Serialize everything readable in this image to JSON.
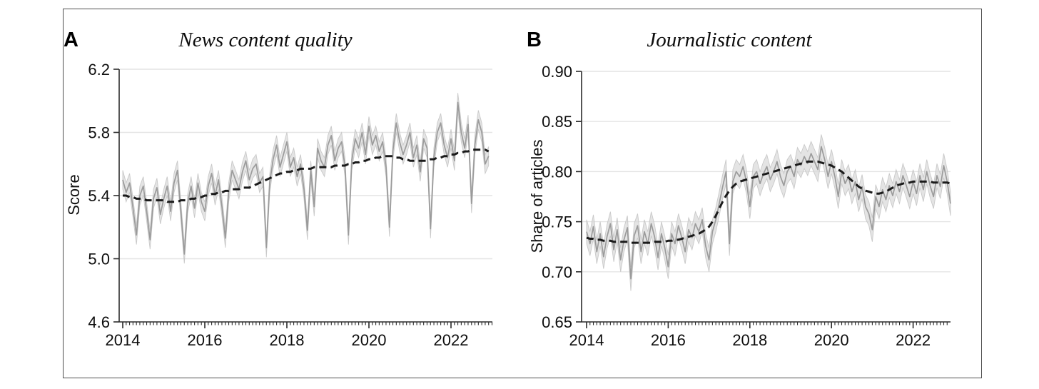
{
  "colors": {
    "trend": "#1b1b1b",
    "monthly": "#9b9b9b",
    "band": "#d9d9d9",
    "band_edge": "#bfbfbf",
    "grid": "#e4e4e4",
    "axis": "#2b2b2b",
    "figure_border": "#4f4f4f"
  },
  "chart_data": [
    {
      "type": "line",
      "panel_label": "A",
      "title": "News content quality",
      "xlabel": "",
      "ylabel": "Score",
      "xlim": [
        2014,
        2023
      ],
      "ylim": [
        4.6,
        6.2
      ],
      "yticks": [
        4.6,
        5.0,
        5.4,
        5.8,
        6.2
      ],
      "ytick_labels": [
        "4.6",
        "5.0",
        "5.4",
        "5.8",
        "6.2"
      ],
      "xticks": [
        2014,
        2016,
        2018,
        2020,
        2022
      ],
      "xtick_labels": [
        "2014",
        "2016",
        "2018",
        "2020",
        "2022"
      ],
      "x_start": 2014,
      "x_step_months": 1,
      "grid": "horizontal",
      "legend": "none",
      "band": {
        "series": "monthly",
        "halfwidth": 0.06
      },
      "series": [
        {
          "name": "monthly",
          "style": "solid",
          "values": [
            5.5,
            5.42,
            5.48,
            5.32,
            5.15,
            5.4,
            5.46,
            5.3,
            5.12,
            5.38,
            5.45,
            5.28,
            5.38,
            5.46,
            5.3,
            5.48,
            5.56,
            5.3,
            5.03,
            5.35,
            5.46,
            5.32,
            5.48,
            5.36,
            5.3,
            5.46,
            5.54,
            5.4,
            5.5,
            5.33,
            5.13,
            5.42,
            5.56,
            5.5,
            5.44,
            5.55,
            5.62,
            5.5,
            5.57,
            5.6,
            5.48,
            5.52,
            5.07,
            5.48,
            5.63,
            5.72,
            5.58,
            5.66,
            5.74,
            5.58,
            5.64,
            5.52,
            5.6,
            5.44,
            5.18,
            5.56,
            5.33,
            5.7,
            5.62,
            5.58,
            5.72,
            5.78,
            5.62,
            5.7,
            5.74,
            5.58,
            5.15,
            5.62,
            5.76,
            5.7,
            5.8,
            5.66,
            5.84,
            5.72,
            5.78,
            5.68,
            5.74,
            5.58,
            5.2,
            5.68,
            5.86,
            5.74,
            5.66,
            5.72,
            5.8,
            5.64,
            5.72,
            5.55,
            5.76,
            5.7,
            5.19,
            5.64,
            5.8,
            5.86,
            5.72,
            5.64,
            5.76,
            5.62,
            5.99,
            5.8,
            5.7,
            5.85,
            5.35,
            5.72,
            5.88,
            5.8,
            5.6,
            5.65
          ]
        },
        {
          "name": "trend",
          "style": "dashed",
          "values": [
            5.4,
            5.4,
            5.39,
            5.39,
            5.38,
            5.38,
            5.38,
            5.37,
            5.37,
            5.37,
            5.37,
            5.37,
            5.37,
            5.36,
            5.36,
            5.36,
            5.36,
            5.37,
            5.37,
            5.37,
            5.38,
            5.38,
            5.39,
            5.39,
            5.4,
            5.4,
            5.41,
            5.41,
            5.42,
            5.42,
            5.43,
            5.43,
            5.44,
            5.44,
            5.44,
            5.45,
            5.45,
            5.45,
            5.46,
            5.47,
            5.48,
            5.49,
            5.5,
            5.51,
            5.52,
            5.53,
            5.54,
            5.54,
            5.55,
            5.55,
            5.56,
            5.56,
            5.57,
            5.57,
            5.57,
            5.57,
            5.58,
            5.58,
            5.58,
            5.58,
            5.58,
            5.58,
            5.59,
            5.59,
            5.59,
            5.59,
            5.6,
            5.6,
            5.61,
            5.61,
            5.62,
            5.62,
            5.63,
            5.63,
            5.64,
            5.64,
            5.65,
            5.65,
            5.65,
            5.65,
            5.64,
            5.64,
            5.63,
            5.63,
            5.62,
            5.62,
            5.62,
            5.62,
            5.62,
            5.62,
            5.63,
            5.63,
            5.64,
            5.64,
            5.65,
            5.65,
            5.66,
            5.66,
            5.67,
            5.67,
            5.68,
            5.68,
            5.69,
            5.69,
            5.69,
            5.69,
            5.69,
            5.68
          ]
        }
      ]
    },
    {
      "type": "line",
      "panel_label": "B",
      "title": "Journalistic content",
      "xlabel": "",
      "ylabel": "Share of articles",
      "xlim": [
        2014,
        2023
      ],
      "ylim": [
        0.65,
        0.9
      ],
      "yticks": [
        0.65,
        0.7,
        0.75,
        0.8,
        0.85,
        0.9
      ],
      "ytick_labels": [
        "0.65",
        "0.70",
        "0.75",
        "0.80",
        "0.85",
        "0.90"
      ],
      "xticks": [
        2014,
        2016,
        2018,
        2020,
        2022
      ],
      "xtick_labels": [
        "2014",
        "2016",
        "2018",
        "2020",
        "2022"
      ],
      "x_start": 2014,
      "x_step_months": 1,
      "grid": "horizontal",
      "legend": "none",
      "band": {
        "series": "monthly",
        "halfwidth": 0.012
      },
      "series": [
        {
          "name": "monthly",
          "style": "solid",
          "values": [
            0.74,
            0.728,
            0.745,
            0.72,
            0.738,
            0.715,
            0.735,
            0.748,
            0.722,
            0.742,
            0.712,
            0.732,
            0.744,
            0.693,
            0.736,
            0.746,
            0.72,
            0.74,
            0.728,
            0.748,
            0.735,
            0.714,
            0.738,
            0.724,
            0.705,
            0.738,
            0.728,
            0.746,
            0.734,
            0.72,
            0.742,
            0.734,
            0.748,
            0.74,
            0.752,
            0.726,
            0.712,
            0.74,
            0.752,
            0.768,
            0.785,
            0.8,
            0.728,
            0.79,
            0.8,
            0.795,
            0.805,
            0.79,
            0.765,
            0.795,
            0.8,
            0.788,
            0.798,
            0.805,
            0.792,
            0.8,
            0.81,
            0.795,
            0.786,
            0.8,
            0.805,
            0.795,
            0.812,
            0.806,
            0.815,
            0.808,
            0.818,
            0.81,
            0.802,
            0.825,
            0.812,
            0.795,
            0.81,
            0.795,
            0.775,
            0.8,
            0.788,
            0.795,
            0.78,
            0.79,
            0.772,
            0.785,
            0.765,
            0.758,
            0.742,
            0.775,
            0.765,
            0.782,
            0.772,
            0.786,
            0.776,
            0.79,
            0.78,
            0.796,
            0.786,
            0.775,
            0.79,
            0.778,
            0.796,
            0.782,
            0.8,
            0.786,
            0.775,
            0.796,
            0.785,
            0.806,
            0.79,
            0.768
          ]
        },
        {
          "name": "trend",
          "style": "dashed",
          "values": [
            0.734,
            0.733,
            0.733,
            0.732,
            0.732,
            0.731,
            0.731,
            0.731,
            0.73,
            0.73,
            0.73,
            0.73,
            0.73,
            0.729,
            0.729,
            0.729,
            0.729,
            0.729,
            0.729,
            0.729,
            0.73,
            0.73,
            0.73,
            0.73,
            0.731,
            0.731,
            0.732,
            0.732,
            0.733,
            0.734,
            0.735,
            0.736,
            0.737,
            0.738,
            0.74,
            0.742,
            0.745,
            0.75,
            0.756,
            0.763,
            0.77,
            0.776,
            0.781,
            0.785,
            0.788,
            0.79,
            0.791,
            0.792,
            0.793,
            0.794,
            0.795,
            0.796,
            0.797,
            0.798,
            0.799,
            0.8,
            0.801,
            0.802,
            0.803,
            0.804,
            0.805,
            0.806,
            0.807,
            0.808,
            0.809,
            0.81,
            0.81,
            0.81,
            0.81,
            0.809,
            0.808,
            0.807,
            0.806,
            0.804,
            0.802,
            0.8,
            0.797,
            0.794,
            0.791,
            0.788,
            0.785,
            0.783,
            0.781,
            0.78,
            0.779,
            0.778,
            0.778,
            0.779,
            0.78,
            0.782,
            0.784,
            0.786,
            0.787,
            0.788,
            0.789,
            0.789,
            0.79,
            0.79,
            0.79,
            0.79,
            0.79,
            0.79,
            0.789,
            0.789,
            0.789,
            0.789,
            0.789,
            0.788
          ]
        }
      ]
    }
  ]
}
